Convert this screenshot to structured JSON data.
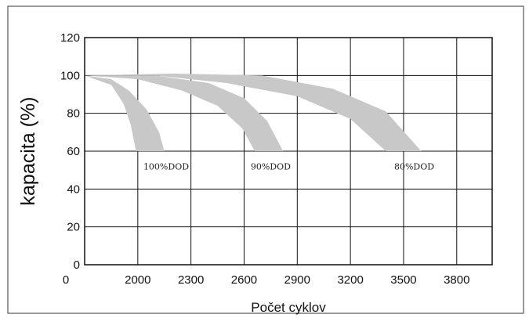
{
  "chart_data": {
    "type": "area",
    "xlabel": "Počet cyklov",
    "ylabel": "kapacita (%)",
    "x_origin_label": "0",
    "x_ticks": [
      2000,
      2300,
      2600,
      2900,
      3200,
      3500,
      3800
    ],
    "y_ticks": [
      0,
      20,
      40,
      60,
      80,
      100,
      120
    ],
    "xlim": [
      1700,
      4000
    ],
    "ylim": [
      0,
      120
    ],
    "grid": true,
    "band_color": "#c8c8c8",
    "series": [
      {
        "name": "100%DOD",
        "upper": [
          [
            1700,
            100
          ],
          [
            1850,
            98
          ],
          [
            1950,
            92
          ],
          [
            2050,
            82
          ],
          [
            2120,
            70
          ],
          [
            2150,
            60
          ]
        ],
        "lower": [
          [
            1700,
            100
          ],
          [
            1850,
            95
          ],
          [
            1920,
            85
          ],
          [
            1960,
            74
          ],
          [
            1990,
            60
          ]
        ]
      },
      {
        "name": "90%DOD",
        "upper": [
          [
            1700,
            100
          ],
          [
            2100,
            100
          ],
          [
            2400,
            96
          ],
          [
            2600,
            88
          ],
          [
            2730,
            76
          ],
          [
            2820,
            60
          ]
        ],
        "lower": [
          [
            1700,
            100
          ],
          [
            2000,
            98
          ],
          [
            2250,
            92
          ],
          [
            2450,
            84
          ],
          [
            2590,
            72
          ],
          [
            2660,
            60
          ]
        ]
      },
      {
        "name": "80%DOD",
        "upper": [
          [
            1700,
            100
          ],
          [
            2200,
            101
          ],
          [
            2700,
            100
          ],
          [
            3100,
            93
          ],
          [
            3400,
            81
          ],
          [
            3600,
            60
          ]
        ],
        "lower": [
          [
            1700,
            100
          ],
          [
            2100,
            100
          ],
          [
            2500,
            96
          ],
          [
            2900,
            89
          ],
          [
            3200,
            77
          ],
          [
            3400,
            60
          ]
        ]
      }
    ],
    "annotations": [
      {
        "text": "100%DOD",
        "x": 2160,
        "y": 52
      },
      {
        "text": "90%DOD",
        "x": 2750,
        "y": 52
      },
      {
        "text": "80%DOD",
        "x": 3560,
        "y": 52
      }
    ]
  }
}
